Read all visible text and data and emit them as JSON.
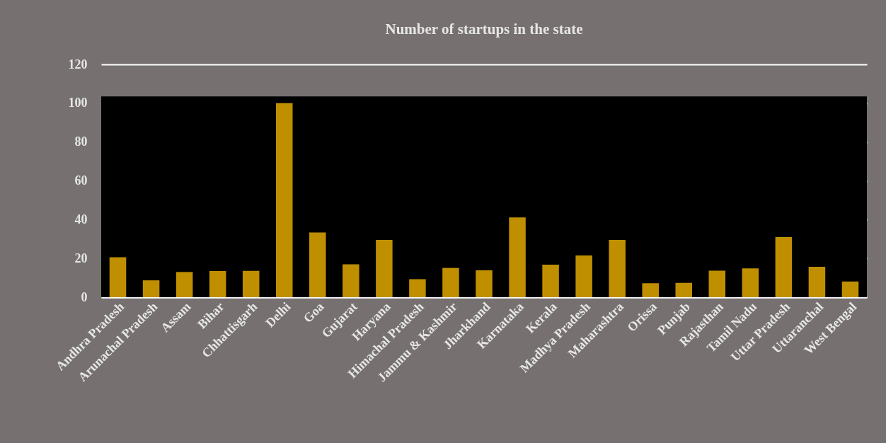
{
  "chart_data": {
    "type": "bar",
    "title": "Number of startups in the state",
    "categories": [
      "Andhra Pradesh",
      "Arunachal Pradesh",
      "Assam",
      "Bihar",
      "Chhattisgarh",
      "Delhi",
      "Goa",
      "Gujarat",
      "Haryana",
      "Himachal Pradesh",
      "Jammu & Kashmir",
      "Jharkhand",
      "Karnataka",
      "Kerala",
      "Madhya Pradesh",
      "Maharashtra",
      "Orissa",
      "Punjab",
      "Rajasthan",
      "Tamil Nadu",
      "Uttar Pradesh",
      "Uttaranchal",
      "West Bengal"
    ],
    "values": [
      20.6,
      8.7,
      13.0,
      13.5,
      13.6,
      100,
      33.4,
      17.0,
      29.5,
      9.3,
      15.1,
      13.9,
      41.1,
      16.8,
      21.5,
      29.5,
      7.2,
      7.4,
      13.7,
      14.9,
      31.0,
      15.7,
      8.1
    ],
    "color": "#bf8f00",
    "ylim": [
      0,
      120
    ],
    "yticks": [
      0,
      20,
      40,
      60,
      80,
      100,
      120
    ],
    "grid": "y",
    "bands": [
      {
        "axis": "y",
        "from": 0,
        "to": 103.5,
        "color": "#000000"
      }
    ]
  }
}
